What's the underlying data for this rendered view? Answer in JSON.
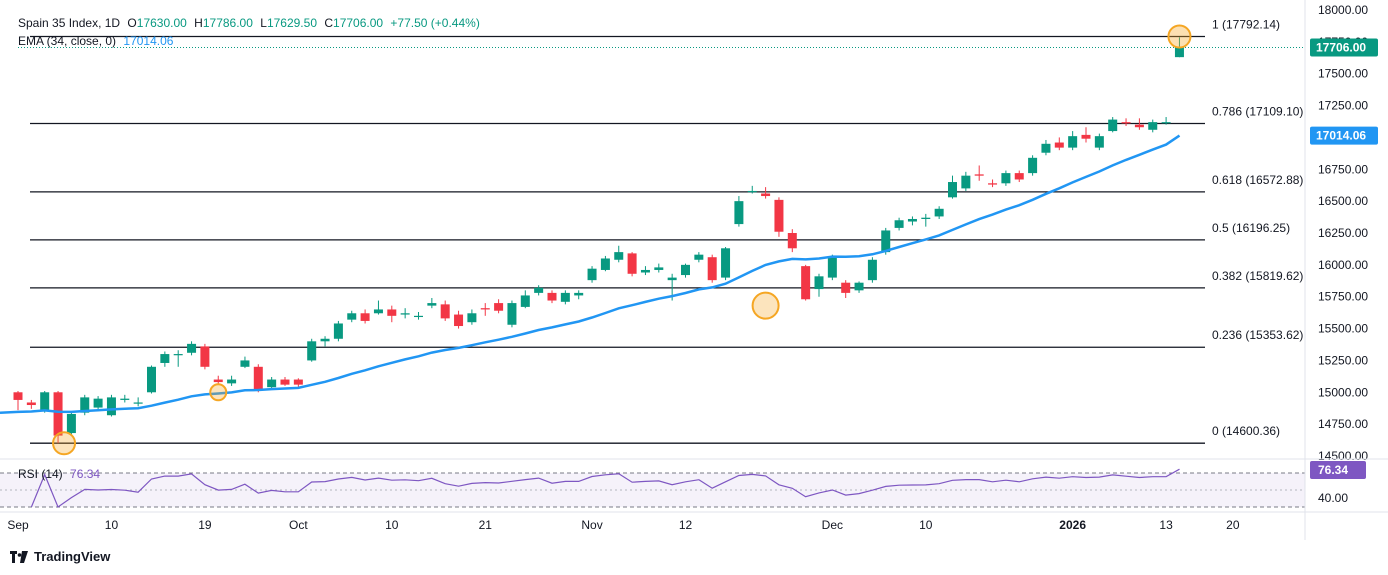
{
  "header": {
    "symbol": "Spain 35 Index, 1D",
    "o_label": "O",
    "o": "17630.00",
    "h_label": "H",
    "h": "17786.00",
    "l_label": "L",
    "l": "17629.50",
    "c_label": "C",
    "c": "17706.00",
    "change": "+77.50 (+0.44%)",
    "ema_label": "EMA (34, close, 0)",
    "ema_value": "17014.06"
  },
  "rsi": {
    "label": "RSI (14)",
    "value": "76.34",
    "level_label": "40.00"
  },
  "brand": "TradingView",
  "colors": {
    "up": "#089981",
    "down": "#f23645",
    "ema": "#2196f3",
    "rsi": "#7e57c2",
    "fib": "#131722",
    "highlight": "#f5a623"
  },
  "chart_data": {
    "type": "candlestick",
    "ylim": [
      14450,
      18000
    ],
    "y_ticks": [
      "18000.00",
      "17750.00",
      "17500.00",
      "17250.00",
      "17000.00",
      "16750.00",
      "16500.00",
      "16250.00",
      "16000.00",
      "15750.00",
      "15500.00",
      "15250.00",
      "15000.00",
      "14750.00",
      "14500.00"
    ],
    "x_labels": [
      {
        "label": "Sep",
        "index": 0
      },
      {
        "label": "10",
        "index": 7
      },
      {
        "label": "19",
        "index": 14
      },
      {
        "label": "Oct",
        "index": 21
      },
      {
        "label": "10",
        "index": 28
      },
      {
        "label": "21",
        "index": 35
      },
      {
        "label": "Nov",
        "index": 43
      },
      {
        "label": "12",
        "index": 50
      },
      {
        "label": "Dec",
        "index": 61
      },
      {
        "label": "10",
        "index": 68
      },
      {
        "label": "2026",
        "index": 79
      },
      {
        "label": "13",
        "index": 86
      },
      {
        "label": "20",
        "index": 91
      }
    ],
    "fibonacci": [
      {
        "label": "1 (17792.14)",
        "value": 17792.14
      },
      {
        "label": "0.786 (17109.10)",
        "value": 17109.1
      },
      {
        "label": "0.618 (16572.88)",
        "value": 16572.88
      },
      {
        "label": "0.5 (16196.25)",
        "value": 16196.25
      },
      {
        "label": "0.382 (15819.62)",
        "value": 15819.62
      },
      {
        "label": "0.236 (15353.62)",
        "value": 15353.62
      },
      {
        "label": "0 (14600.36)",
        "value": 14600.36
      }
    ],
    "price_label": "17706.00",
    "price_value": 17706,
    "ema_label": "17014.06",
    "ema_value": 17014.06,
    "candles": [
      [
        15000,
        14940,
        15010,
        14860
      ],
      [
        14920,
        14900,
        14940,
        14870
      ],
      [
        14850,
        15000,
        15010,
        14840
      ],
      [
        15000,
        14660,
        15010,
        14600
      ],
      [
        14680,
        14830,
        14850,
        14660
      ],
      [
        14840,
        14960,
        14980,
        14820
      ],
      [
        14880,
        14950,
        14970,
        14860
      ],
      [
        14820,
        14960,
        14980,
        14810
      ],
      [
        14940,
        14950,
        14980,
        14920
      ],
      [
        14920,
        14920,
        14960,
        14890
      ],
      [
        15000,
        15200,
        15210,
        14990
      ],
      [
        15230,
        15300,
        15320,
        15200
      ],
      [
        15300,
        15300,
        15330,
        15200
      ],
      [
        15310,
        15380,
        15400,
        15290
      ],
      [
        15360,
        15200,
        15380,
        15180
      ],
      [
        15100,
        15080,
        15130,
        15060
      ],
      [
        15070,
        15100,
        15130,
        15050
      ],
      [
        15200,
        15250,
        15280,
        15190
      ],
      [
        15200,
        15020,
        15220,
        15000
      ],
      [
        15040,
        15100,
        15120,
        15020
      ],
      [
        15100,
        15060,
        15120,
        15050
      ],
      [
        15100,
        15060,
        15110,
        15040
      ],
      [
        15250,
        15400,
        15420,
        15240
      ],
      [
        15400,
        15420,
        15440,
        15360
      ],
      [
        15420,
        15540,
        15560,
        15400
      ],
      [
        15570,
        15620,
        15640,
        15550
      ],
      [
        15620,
        15560,
        15650,
        15540
      ],
      [
        15620,
        15650,
        15720,
        15610
      ],
      [
        15650,
        15600,
        15680,
        15550
      ],
      [
        15610,
        15620,
        15660,
        15580
      ],
      [
        15600,
        15600,
        15630,
        15570
      ],
      [
        15680,
        15700,
        15740,
        15660
      ],
      [
        15690,
        15580,
        15720,
        15560
      ],
      [
        15610,
        15520,
        15640,
        15500
      ],
      [
        15550,
        15620,
        15650,
        15530
      ],
      [
        15660,
        15650,
        15700,
        15600
      ],
      [
        15700,
        15640,
        15730,
        15620
      ],
      [
        15530,
        15700,
        15720,
        15510
      ],
      [
        15670,
        15760,
        15800,
        15660
      ],
      [
        15780,
        15820,
        15840,
        15760
      ],
      [
        15780,
        15720,
        15800,
        15700
      ],
      [
        15710,
        15780,
        15800,
        15690
      ],
      [
        15760,
        15780,
        15800,
        15730
      ],
      [
        15880,
        15970,
        15990,
        15860
      ],
      [
        15960,
        16050,
        16070,
        15950
      ],
      [
        16040,
        16100,
        16150,
        16020
      ],
      [
        16090,
        15930,
        16100,
        15910
      ],
      [
        15940,
        15960,
        15990,
        15920
      ],
      [
        15960,
        15980,
        16010,
        15940
      ],
      [
        15880,
        15900,
        15930,
        15720
      ],
      [
        15920,
        16000,
        16010,
        15900
      ],
      [
        16040,
        16080,
        16100,
        16020
      ],
      [
        16060,
        15880,
        16080,
        15860
      ],
      [
        15900,
        16130,
        16140,
        15880
      ],
      [
        16320,
        16500,
        16540,
        16300
      ],
      [
        16570,
        16580,
        16620,
        16560
      ],
      [
        16560,
        16540,
        16610,
        16520
      ],
      [
        16510,
        16260,
        16530,
        16220
      ],
      [
        16250,
        16130,
        16280,
        16100
      ],
      [
        15990,
        15730,
        16000,
        15720
      ],
      [
        15810,
        15910,
        15930,
        15750
      ],
      [
        15900,
        16060,
        16080,
        15880
      ],
      [
        15860,
        15780,
        15880,
        15740
      ],
      [
        15800,
        15860,
        15870,
        15780
      ],
      [
        15880,
        16040,
        16060,
        15860
      ],
      [
        16100,
        16270,
        16290,
        16080
      ],
      [
        16290,
        16350,
        16370,
        16270
      ],
      [
        16340,
        16360,
        16380,
        16310
      ],
      [
        16360,
        16370,
        16400,
        16300
      ],
      [
        16380,
        16440,
        16460,
        16360
      ],
      [
        16530,
        16650,
        16700,
        16520
      ],
      [
        16600,
        16700,
        16730,
        16580
      ],
      [
        16710,
        16700,
        16780,
        16660
      ],
      [
        16640,
        16630,
        16670,
        16610
      ],
      [
        16640,
        16720,
        16740,
        16620
      ],
      [
        16720,
        16670,
        16740,
        16650
      ],
      [
        16720,
        16840,
        16860,
        16700
      ],
      [
        16880,
        16950,
        16980,
        16860
      ],
      [
        16960,
        16920,
        17000,
        16900
      ],
      [
        16920,
        17010,
        17050,
        16900
      ],
      [
        17020,
        16990,
        17080,
        16960
      ],
      [
        16920,
        17010,
        17030,
        16900
      ],
      [
        17050,
        17140,
        17160,
        17040
      ],
      [
        17120,
        17110,
        17150,
        17090
      ],
      [
        17100,
        17080,
        17150,
        17060
      ],
      [
        17060,
        17120,
        17140,
        17040
      ],
      [
        17120,
        17120,
        17160,
        17100
      ]
    ]
  }
}
